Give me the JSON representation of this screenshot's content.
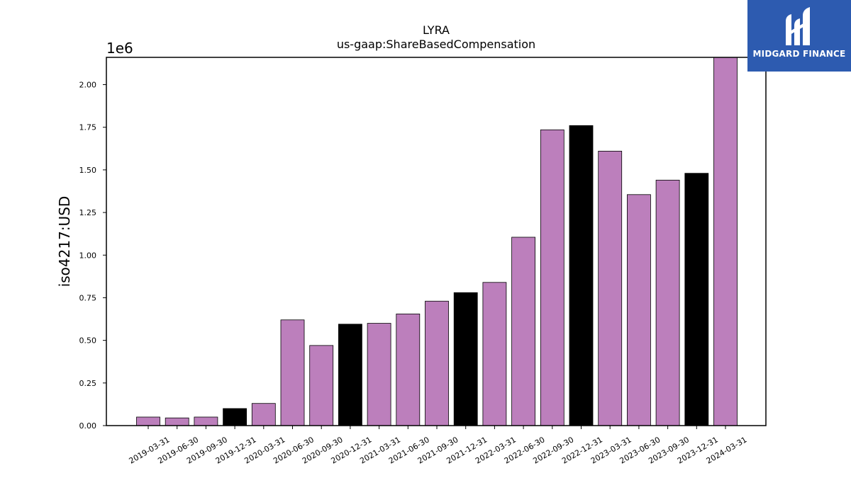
{
  "chart_data": {
    "type": "bar",
    "title": "LYRA",
    "subtitle": "us-gaap:ShareBasedCompensation",
    "ylabel": "iso4217:USD",
    "y_multiplier_label": "1e6",
    "ylim": [
      0,
      2.16
    ],
    "yticks": [
      "0.00",
      "0.25",
      "0.50",
      "0.75",
      "1.00",
      "1.25",
      "1.50",
      "1.75",
      "2.00"
    ],
    "categories": [
      "2019-03-31",
      "2019-06-30",
      "2019-09-30",
      "2019-12-31",
      "2020-03-31",
      "2020-06-30",
      "2020-09-30",
      "2020-12-31",
      "2021-03-31",
      "2021-06-30",
      "2021-09-30",
      "2021-12-31",
      "2022-03-31",
      "2022-06-30",
      "2022-09-30",
      "2022-12-31",
      "2023-03-31",
      "2023-06-30",
      "2023-09-30",
      "2023-12-31",
      "2024-03-31"
    ],
    "values": [
      0.05,
      0.045,
      0.05,
      0.1,
      0.13,
      0.62,
      0.47,
      0.595,
      0.6,
      0.655,
      0.73,
      0.78,
      0.84,
      1.105,
      1.735,
      1.76,
      1.61,
      1.355,
      1.44,
      1.48,
      2.16
    ],
    "bar_colors": {
      "quarter": "#bc7fbc",
      "year_end": "#000000"
    },
    "colors": [
      "quarter",
      "quarter",
      "quarter",
      "year_end",
      "quarter",
      "quarter",
      "quarter",
      "year_end",
      "quarter",
      "quarter",
      "quarter",
      "year_end",
      "quarter",
      "quarter",
      "quarter",
      "year_end",
      "quarter",
      "quarter",
      "quarter",
      "year_end",
      "quarter"
    ],
    "grid": false,
    "legend": "none"
  },
  "logo": {
    "text": "MIDGARD FINANCE",
    "background": "#2d5bb0",
    "icon": "midgard-logo-icon"
  }
}
